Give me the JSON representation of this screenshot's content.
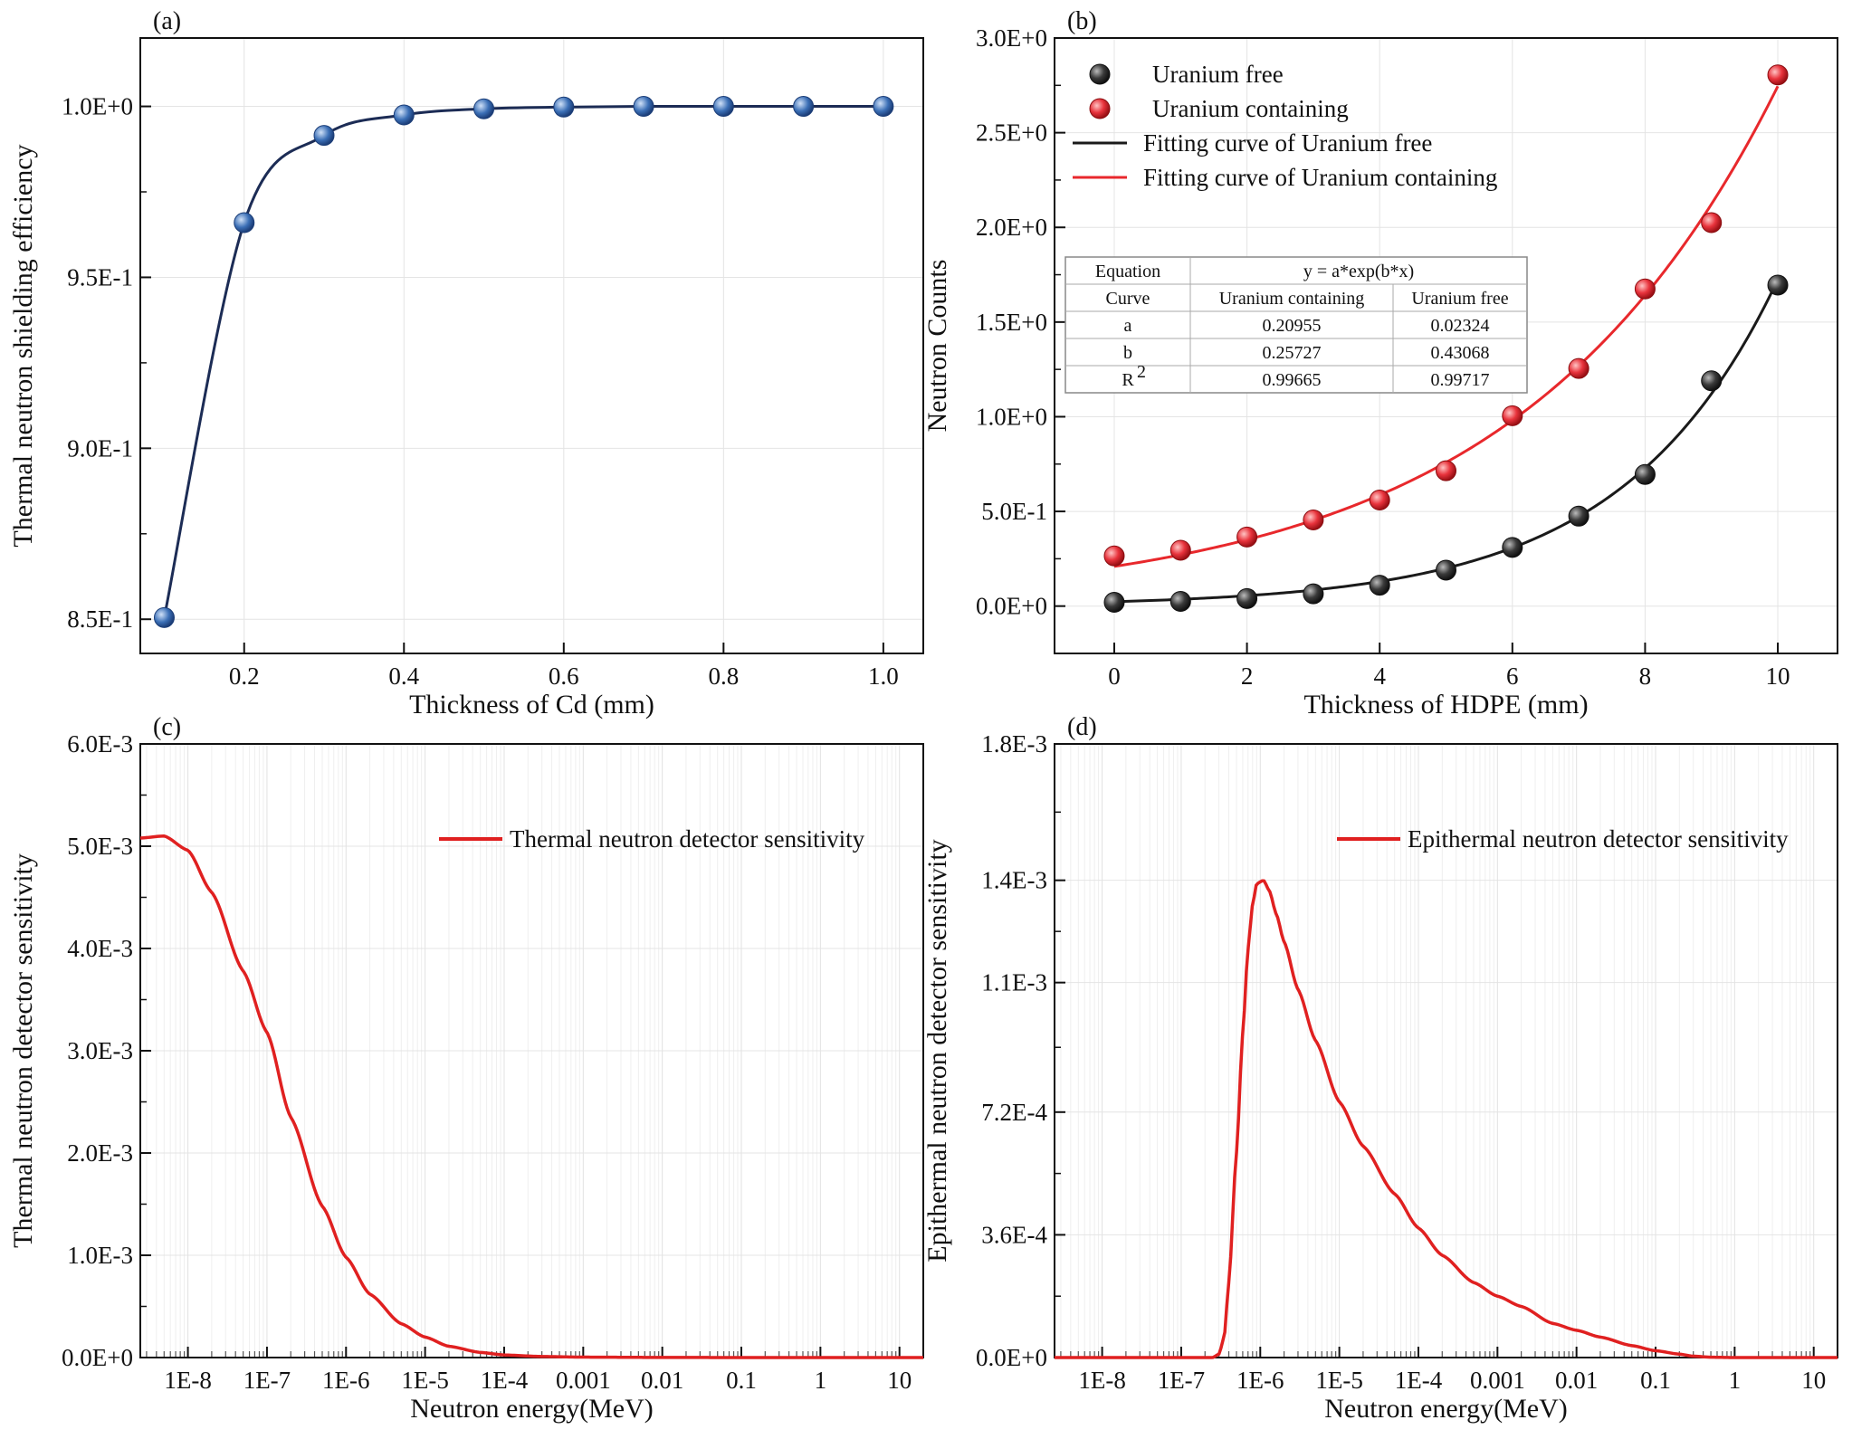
{
  "chart_data": [
    {
      "panel": "(a)",
      "type": "line",
      "xlabel": "Thickness of Cd (mm)",
      "ylabel": "Thermal neutron shielding efficiency",
      "xlim": [
        0.07,
        1.05
      ],
      "ylim": [
        0.84,
        1.02
      ],
      "xticks": [
        0.2,
        0.4,
        0.6,
        0.8,
        1.0
      ],
      "xtick_labels": [
        "0.2",
        "0.4",
        "0.6",
        "0.8",
        "1.0"
      ],
      "yticks": [
        0.85,
        0.9,
        0.95,
        1.0
      ],
      "ytick_labels": [
        "8.5E-1",
        "9.0E-1",
        "9.5E-1",
        "1.0E+0"
      ],
      "grid": true,
      "series": [
        {
          "marker_color": "#3b6fb6",
          "line_color": "#1c2c55",
          "x": [
            0.1,
            0.2,
            0.3,
            0.4,
            0.5,
            0.6,
            0.7,
            0.8,
            0.9,
            1.0
          ],
          "y": [
            0.8505,
            0.966,
            0.9915,
            0.9975,
            0.9993,
            0.9998,
            1.0,
            1.0,
            1.0,
            1.0
          ]
        }
      ]
    },
    {
      "panel": "(b)",
      "type": "scatter",
      "xlabel": "Thickness of HDPE (mm)",
      "ylabel": "Neutron Counts",
      "xlim": [
        -0.9,
        10.9
      ],
      "ylim": [
        -0.25,
        3.0
      ],
      "xticks": [
        0,
        2,
        4,
        6,
        8,
        10
      ],
      "xtick_labels": [
        "0",
        "2",
        "4",
        "6",
        "8",
        "10"
      ],
      "yticks": [
        0,
        0.5,
        1.0,
        1.5,
        2.0,
        2.5,
        3.0
      ],
      "ytick_labels": [
        "0.0E+0",
        "5.0E-1",
        "1.0E+0",
        "1.5E+0",
        "2.0E+0",
        "2.5E+0",
        "3.0E+0"
      ],
      "grid": true,
      "legend": "top-left",
      "series": [
        {
          "name": "Uranium free",
          "color": "#3a3a3a",
          "x": [
            0,
            1,
            2,
            3,
            4,
            5,
            6,
            7,
            8,
            9,
            10
          ],
          "y": [
            0.02,
            0.025,
            0.04,
            0.065,
            0.11,
            0.19,
            0.31,
            0.475,
            0.695,
            1.19,
            1.695
          ]
        },
        {
          "name": "Uranium containing",
          "color": "#e8333c",
          "x": [
            0,
            1,
            2,
            3,
            4,
            5,
            6,
            7,
            8,
            9,
            10
          ],
          "y": [
            0.265,
            0.295,
            0.365,
            0.455,
            0.56,
            0.715,
            1.005,
            1.255,
            1.675,
            2.025,
            2.805
          ]
        }
      ],
      "fits": [
        {
          "name": "Fitting curve of Uranium free",
          "color": "#1a1a1a",
          "a": 0.02324,
          "b": 0.43068
        },
        {
          "name": "Fitting curve of Uranium containing",
          "color": "#e8282c",
          "a": 0.20955,
          "b": 0.25727
        }
      ],
      "table": {
        "equation_label": "Equation",
        "equation": "y = a*exp(b*x)",
        "curve_label": "Curve",
        "col1": "Uranium containing",
        "col2": "Uranium free",
        "rows": [
          {
            "param": "a",
            "v1": "0.20955",
            "v2": "0.02324"
          },
          {
            "param": "b",
            "v1": "0.25727",
            "v2": "0.43068"
          },
          {
            "param": "R",
            "sup": "2",
            "v1": "0.99665",
            "v2": "0.99717"
          }
        ]
      }
    },
    {
      "panel": "(c)",
      "type": "line",
      "xlabel": "Neutron energy(MeV)",
      "ylabel": "Thermal neutron detector sensitivity",
      "xscale": "log",
      "xlim": [
        2.5e-09,
        20
      ],
      "ylim": [
        0,
        0.006
      ],
      "xticks": [
        1e-08,
        1e-07,
        1e-06,
        1e-05,
        0.0001,
        0.001,
        0.01,
        0.1,
        1,
        10
      ],
      "xtick_labels": [
        "1E-8",
        "1E-7",
        "1E-6",
        "1E-5",
        "1E-4",
        "0.001",
        "0.01",
        "0.1",
        "1",
        "10"
      ],
      "yticks": [
        0,
        0.001,
        0.002,
        0.003,
        0.004,
        0.005,
        0.006
      ],
      "ytick_labels": [
        "0.0E+0",
        "1.0E-3",
        "2.0E-3",
        "3.0E-3",
        "4.0E-3",
        "5.0E-3",
        "6.0E-3"
      ],
      "grid": true,
      "legend": "top-right",
      "series": [
        {
          "name": "Thermal neutron detector sensitivity",
          "color": "#e02020",
          "x": [
            2.5e-09,
            5e-09,
            1e-08,
            2e-08,
            5e-08,
            1e-07,
            2e-07,
            5e-07,
            1e-06,
            2e-06,
            5e-06,
            1e-05,
            2e-05,
            5e-05,
            0.0001,
            0.0003,
            0.001,
            0.01,
            0.1,
            1,
            20
          ],
          "y": [
            0.00508,
            0.0051,
            0.00496,
            0.00455,
            0.00378,
            0.00318,
            0.00235,
            0.00148,
            0.00098,
            0.00062,
            0.00033,
            0.0002,
            0.00011,
            5e-05,
            2.5e-05,
            1e-05,
            4e-06,
            1e-06,
            3e-07,
            1e-07,
            1e-07
          ]
        }
      ]
    },
    {
      "panel": "(d)",
      "type": "line",
      "xlabel": "Neutron energy(MeV)",
      "ylabel": "Epithermal neutron detector sensitivity",
      "xscale": "log",
      "xlim": [
        2.5e-09,
        20
      ],
      "ylim": [
        0,
        0.0018
      ],
      "xticks": [
        1e-08,
        1e-07,
        1e-06,
        1e-05,
        0.0001,
        0.001,
        0.01,
        0.1,
        1,
        10
      ],
      "xtick_labels": [
        "1E-8",
        "1E-7",
        "1E-6",
        "1E-5",
        "1E-4",
        "0.001",
        "0.01",
        "0.1",
        "1",
        "10"
      ],
      "yticks": [
        0,
        0.00036,
        0.00072,
        0.0011,
        0.0014,
        0.0018
      ],
      "ytick_labels": [
        "0.0E+0",
        "3.6E-4",
        "7.2E-4",
        "1.1E-3",
        "1.4E-3",
        "1.8E-3"
      ],
      "grid": true,
      "legend": "top-right",
      "series": [
        {
          "name": "Epithermal neutron detector sensitivity",
          "color": "#e02020",
          "x": [
            2.5e-09,
            2.5e-07,
            3e-07,
            3.5e-07,
            4e-07,
            5e-07,
            6e-07,
            7e-07,
            8e-07,
            9e-07,
            1.1e-06,
            1.3e-06,
            1.6e-06,
            2e-06,
            3e-06,
            5e-06,
            1e-05,
            2e-05,
            5e-05,
            0.0001,
            0.0002,
            0.0005,
            0.001,
            0.002,
            0.005,
            0.01,
            0.02,
            0.05,
            0.1,
            0.2,
            0.3,
            0.5,
            1,
            20
          ],
          "y": [
            0,
            0,
            1e-05,
            6e-05,
            0.00022,
            0.0006,
            0.00095,
            0.0012,
            0.00133,
            0.00139,
            0.0014,
            0.00137,
            0.0013,
            0.00122,
            0.00108,
            0.00093,
            0.00075,
            0.00062,
            0.00048,
            0.00038,
            0.0003,
            0.00022,
            0.00018,
            0.00015,
            0.0001,
            8e-05,
            6e-05,
            3.5e-05,
            2e-05,
            1e-05,
            4e-06,
            1e-06,
            0,
            0
          ]
        }
      ]
    }
  ]
}
